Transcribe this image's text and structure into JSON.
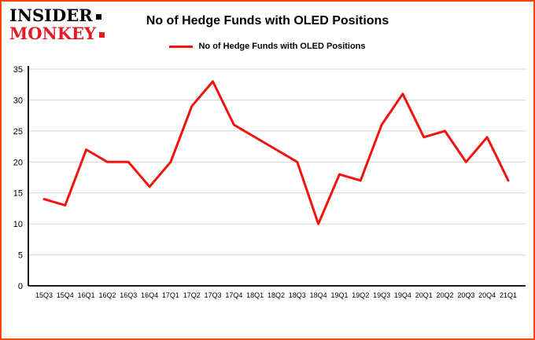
{
  "logo": {
    "line1": "INSIDER",
    "line2": "MONKEY"
  },
  "header": {
    "title": "No of Hedge Funds with OLED Positions",
    "legend_label": "No of Hedge Funds with OLED Positions"
  },
  "colors": {
    "frame_border": "#ff4500",
    "line": "#f2130e",
    "logo_red": "#e31b23",
    "grid": "#d4d4d4",
    "axis": "#000000"
  },
  "chart_data": {
    "type": "line",
    "title": "No of Hedge Funds with OLED Positions",
    "series_name": "No of Hedge Funds with OLED Positions",
    "categories": [
      "15Q3",
      "15Q4",
      "16Q1",
      "16Q2",
      "16Q3",
      "16Q4",
      "17Q1",
      "17Q2",
      "17Q3",
      "17Q4",
      "18Q1",
      "18Q2",
      "18Q3",
      "18Q4",
      "19Q1",
      "19Q2",
      "19Q3",
      "19Q4",
      "20Q1",
      "20Q2",
      "20Q3",
      "20Q4",
      "21Q1"
    ],
    "values": [
      14,
      13,
      22,
      20,
      20,
      16,
      20,
      29,
      33,
      26,
      24,
      22,
      20,
      10,
      18,
      17,
      26,
      31,
      24,
      25,
      20,
      24,
      17
    ],
    "ylim": [
      0,
      35
    ],
    "yticks": [
      0,
      5,
      10,
      15,
      20,
      25,
      30,
      35
    ],
    "grid": true,
    "legend_position": "top"
  }
}
